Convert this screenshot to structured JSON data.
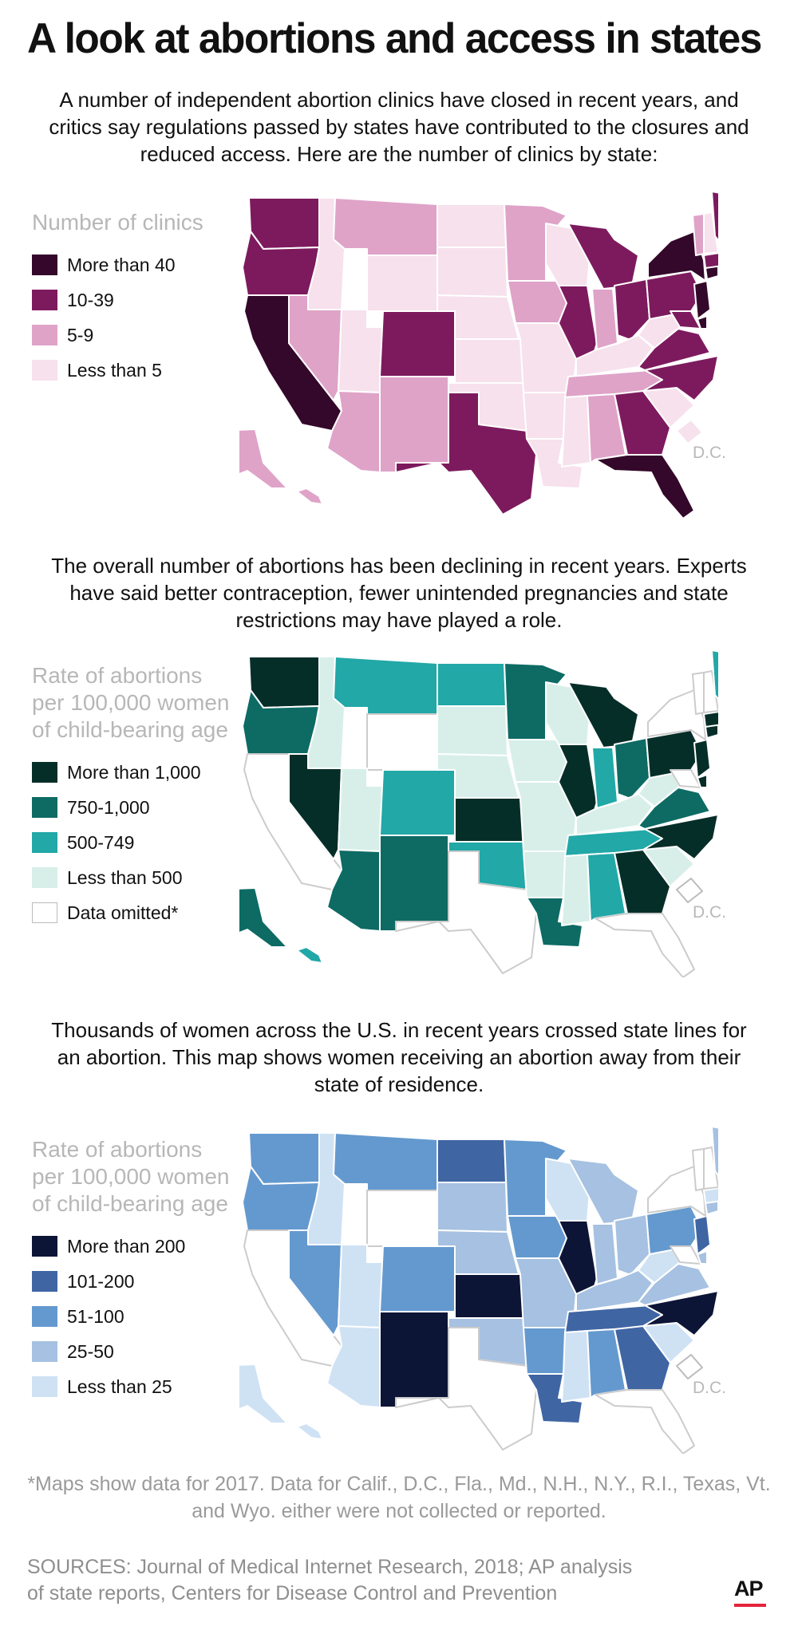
{
  "title": "A look at abortions and access in states",
  "colors": {
    "clinics": [
      "#34082a",
      "#7d1a5e",
      "#dfa3c8",
      "#f6e1ec"
    ],
    "rate": [
      "#062e28",
      "#0d6b64",
      "#21a8a7",
      "#d8efe9",
      "#ffffff"
    ],
    "travel": [
      "#0d1536",
      "#3f65a3",
      "#6499cf",
      "#a6c1e1",
      "#cfe2f4"
    ]
  },
  "section1": {
    "intro": "A number of independent abortion clinics have closed in recent years, and critics say regulations passed by states have contributed to the closures and reduced access. Here are the number of clinics by state:",
    "legend_title": "Number of clinics",
    "legend": [
      "More than 40",
      "10-39",
      "5-9",
      "Less than 5"
    ],
    "dc_label": "D.C."
  },
  "section2": {
    "intro": "The overall number of abortions has been declining in recent years. Experts have said better contraception, fewer unintended pregnancies and state restrictions may have played a role.",
    "legend_title": "Rate of abortions per 100,000 women of child-bearing age",
    "legend": [
      "More than 1,000",
      "750-1,000",
      "500-749",
      "Less than 500",
      "Data omitted*"
    ],
    "dc_label": "D.C."
  },
  "section3": {
    "intro": "Thousands of women across the U.S. in recent years crossed state lines for an abortion. This map shows women receiving an abortion away from their state of residence.",
    "legend_title": "Rate of abortions per 100,000 women of child-bearing age",
    "legend": [
      "More than 200",
      "101-200",
      "51-100",
      "25-50",
      "Less than 25"
    ],
    "dc_label": "D.C."
  },
  "footnote": "*Maps show data for 2017. Data for Calif., D.C., Fla., Md., N.H., N.Y., R.I., Texas, Vt. and Wyo. either were not collected or reported.",
  "sources": "SOURCES: Journal of Medical Internet Research, 2018; AP analysis of state reports, Centers for Disease Control and Prevention",
  "logo": "AP"
}
